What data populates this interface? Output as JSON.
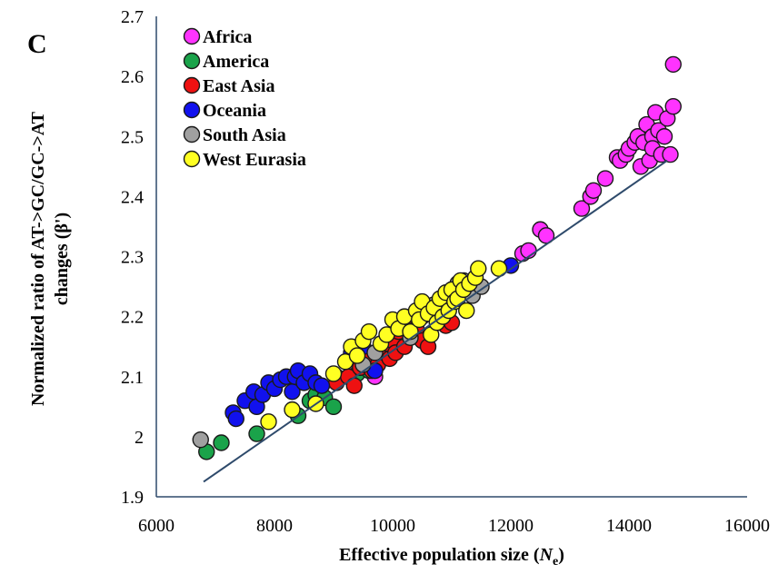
{
  "chart_data": {
    "type": "scatter",
    "panel_label": "C",
    "xlabel_main": "Effective population size (",
    "xlabel_var": "N",
    "xlabel_sub": "e",
    "xlabel_end": ")",
    "ylabel_line1": "Normalized ratio of AT->GC/GC->AT",
    "ylabel_line2": "changes (β')",
    "xlim": [
      6000,
      16000
    ],
    "ylim": [
      1.9,
      2.7
    ],
    "xticks": [
      "6000",
      "8000",
      "10000",
      "12000",
      "14000",
      "16000"
    ],
    "yticks": [
      "1.9",
      "2",
      "2.1",
      "2.2",
      "2.3",
      "2.4",
      "2.5",
      "2.6",
      "2.7"
    ],
    "legend_position": "top-left",
    "grid": false,
    "trendline": {
      "x": [
        6800,
        14650
      ],
      "y": [
        1.925,
        2.46
      ],
      "color": "#2e4a6b"
    },
    "series": [
      {
        "name": "Africa",
        "color": "#ff33ff",
        "points": [
          [
            9050,
            2.1
          ],
          [
            9700,
            2.1
          ],
          [
            12200,
            2.305
          ],
          [
            12300,
            2.31
          ],
          [
            12500,
            2.345
          ],
          [
            12600,
            2.335
          ],
          [
            13200,
            2.38
          ],
          [
            13350,
            2.4
          ],
          [
            13400,
            2.41
          ],
          [
            13600,
            2.43
          ],
          [
            13800,
            2.465
          ],
          [
            13850,
            2.46
          ],
          [
            13950,
            2.47
          ],
          [
            14000,
            2.48
          ],
          [
            14100,
            2.49
          ],
          [
            14150,
            2.5
          ],
          [
            14200,
            2.45
          ],
          [
            14250,
            2.49
          ],
          [
            14300,
            2.52
          ],
          [
            14350,
            2.46
          ],
          [
            14400,
            2.5
          ],
          [
            14400,
            2.48
          ],
          [
            14450,
            2.54
          ],
          [
            14500,
            2.51
          ],
          [
            14550,
            2.47
          ],
          [
            14600,
            2.5
          ],
          [
            14650,
            2.53
          ],
          [
            14700,
            2.47
          ],
          [
            14750,
            2.55
          ],
          [
            14750,
            2.62
          ]
        ]
      },
      {
        "name": "America",
        "color": "#1aa34a",
        "points": [
          [
            6850,
            1.975
          ],
          [
            7100,
            1.99
          ],
          [
            7700,
            2.005
          ],
          [
            8400,
            2.035
          ],
          [
            8600,
            2.06
          ],
          [
            8700,
            2.07
          ],
          [
            8850,
            2.065
          ],
          [
            9000,
            2.05
          ],
          [
            9400,
            2.105
          ],
          [
            9600,
            2.11
          ]
        ]
      },
      {
        "name": "East Asia",
        "color": "#ee1111",
        "points": [
          [
            9050,
            2.09
          ],
          [
            9250,
            2.1
          ],
          [
            9350,
            2.085
          ],
          [
            9450,
            2.115
          ],
          [
            9550,
            2.13
          ],
          [
            9650,
            2.11
          ],
          [
            9750,
            2.12
          ],
          [
            9850,
            2.14
          ],
          [
            9900,
            2.155
          ],
          [
            9950,
            2.13
          ],
          [
            10000,
            2.16
          ],
          [
            10050,
            2.14
          ],
          [
            10100,
            2.175
          ],
          [
            10200,
            2.15
          ],
          [
            10300,
            2.19
          ],
          [
            10400,
            2.18
          ],
          [
            10500,
            2.16
          ],
          [
            10600,
            2.15
          ],
          [
            10650,
            2.21
          ],
          [
            10800,
            2.2
          ],
          [
            10900,
            2.185
          ],
          [
            11000,
            2.19
          ]
        ]
      },
      {
        "name": "Oceania",
        "color": "#1111ee",
        "points": [
          [
            7300,
            2.04
          ],
          [
            7350,
            2.03
          ],
          [
            7500,
            2.06
          ],
          [
            7650,
            2.075
          ],
          [
            7700,
            2.05
          ],
          [
            7800,
            2.07
          ],
          [
            7900,
            2.09
          ],
          [
            8000,
            2.08
          ],
          [
            8100,
            2.095
          ],
          [
            8200,
            2.1
          ],
          [
            8300,
            2.075
          ],
          [
            8350,
            2.1
          ],
          [
            8400,
            2.11
          ],
          [
            8500,
            2.09
          ],
          [
            8600,
            2.105
          ],
          [
            8700,
            2.09
          ],
          [
            8800,
            2.085
          ],
          [
            9300,
            2.14
          ],
          [
            9500,
            2.15
          ],
          [
            9700,
            2.11
          ],
          [
            12000,
            2.285
          ]
        ]
      },
      {
        "name": "South Asia",
        "color": "#a0a0a0",
        "points": [
          [
            6750,
            1.995
          ],
          [
            9500,
            2.12
          ],
          [
            9700,
            2.14
          ],
          [
            10300,
            2.165
          ],
          [
            10500,
            2.2
          ],
          [
            10700,
            2.22
          ],
          [
            10900,
            2.23
          ],
          [
            11100,
            2.255
          ],
          [
            11200,
            2.26
          ],
          [
            11350,
            2.235
          ],
          [
            11500,
            2.25
          ]
        ]
      },
      {
        "name": "West Eurasia",
        "color": "#ffff22",
        "points": [
          [
            7900,
            2.025
          ],
          [
            8300,
            2.045
          ],
          [
            8700,
            2.055
          ],
          [
            9000,
            2.105
          ],
          [
            9200,
            2.125
          ],
          [
            9300,
            2.15
          ],
          [
            9400,
            2.135
          ],
          [
            9500,
            2.16
          ],
          [
            9600,
            2.175
          ],
          [
            9800,
            2.155
          ],
          [
            9900,
            2.17
          ],
          [
            10000,
            2.195
          ],
          [
            10100,
            2.18
          ],
          [
            10200,
            2.2
          ],
          [
            10300,
            2.175
          ],
          [
            10400,
            2.21
          ],
          [
            10450,
            2.195
          ],
          [
            10500,
            2.225
          ],
          [
            10600,
            2.205
          ],
          [
            10650,
            2.17
          ],
          [
            10700,
            2.215
          ],
          [
            10750,
            2.19
          ],
          [
            10800,
            2.23
          ],
          [
            10850,
            2.2
          ],
          [
            10900,
            2.24
          ],
          [
            10950,
            2.21
          ],
          [
            11000,
            2.245
          ],
          [
            11050,
            2.225
          ],
          [
            11100,
            2.23
          ],
          [
            11150,
            2.26
          ],
          [
            11200,
            2.245
          ],
          [
            11250,
            2.21
          ],
          [
            11300,
            2.255
          ],
          [
            11400,
            2.265
          ],
          [
            11450,
            2.28
          ],
          [
            11800,
            2.28
          ]
        ]
      }
    ]
  }
}
